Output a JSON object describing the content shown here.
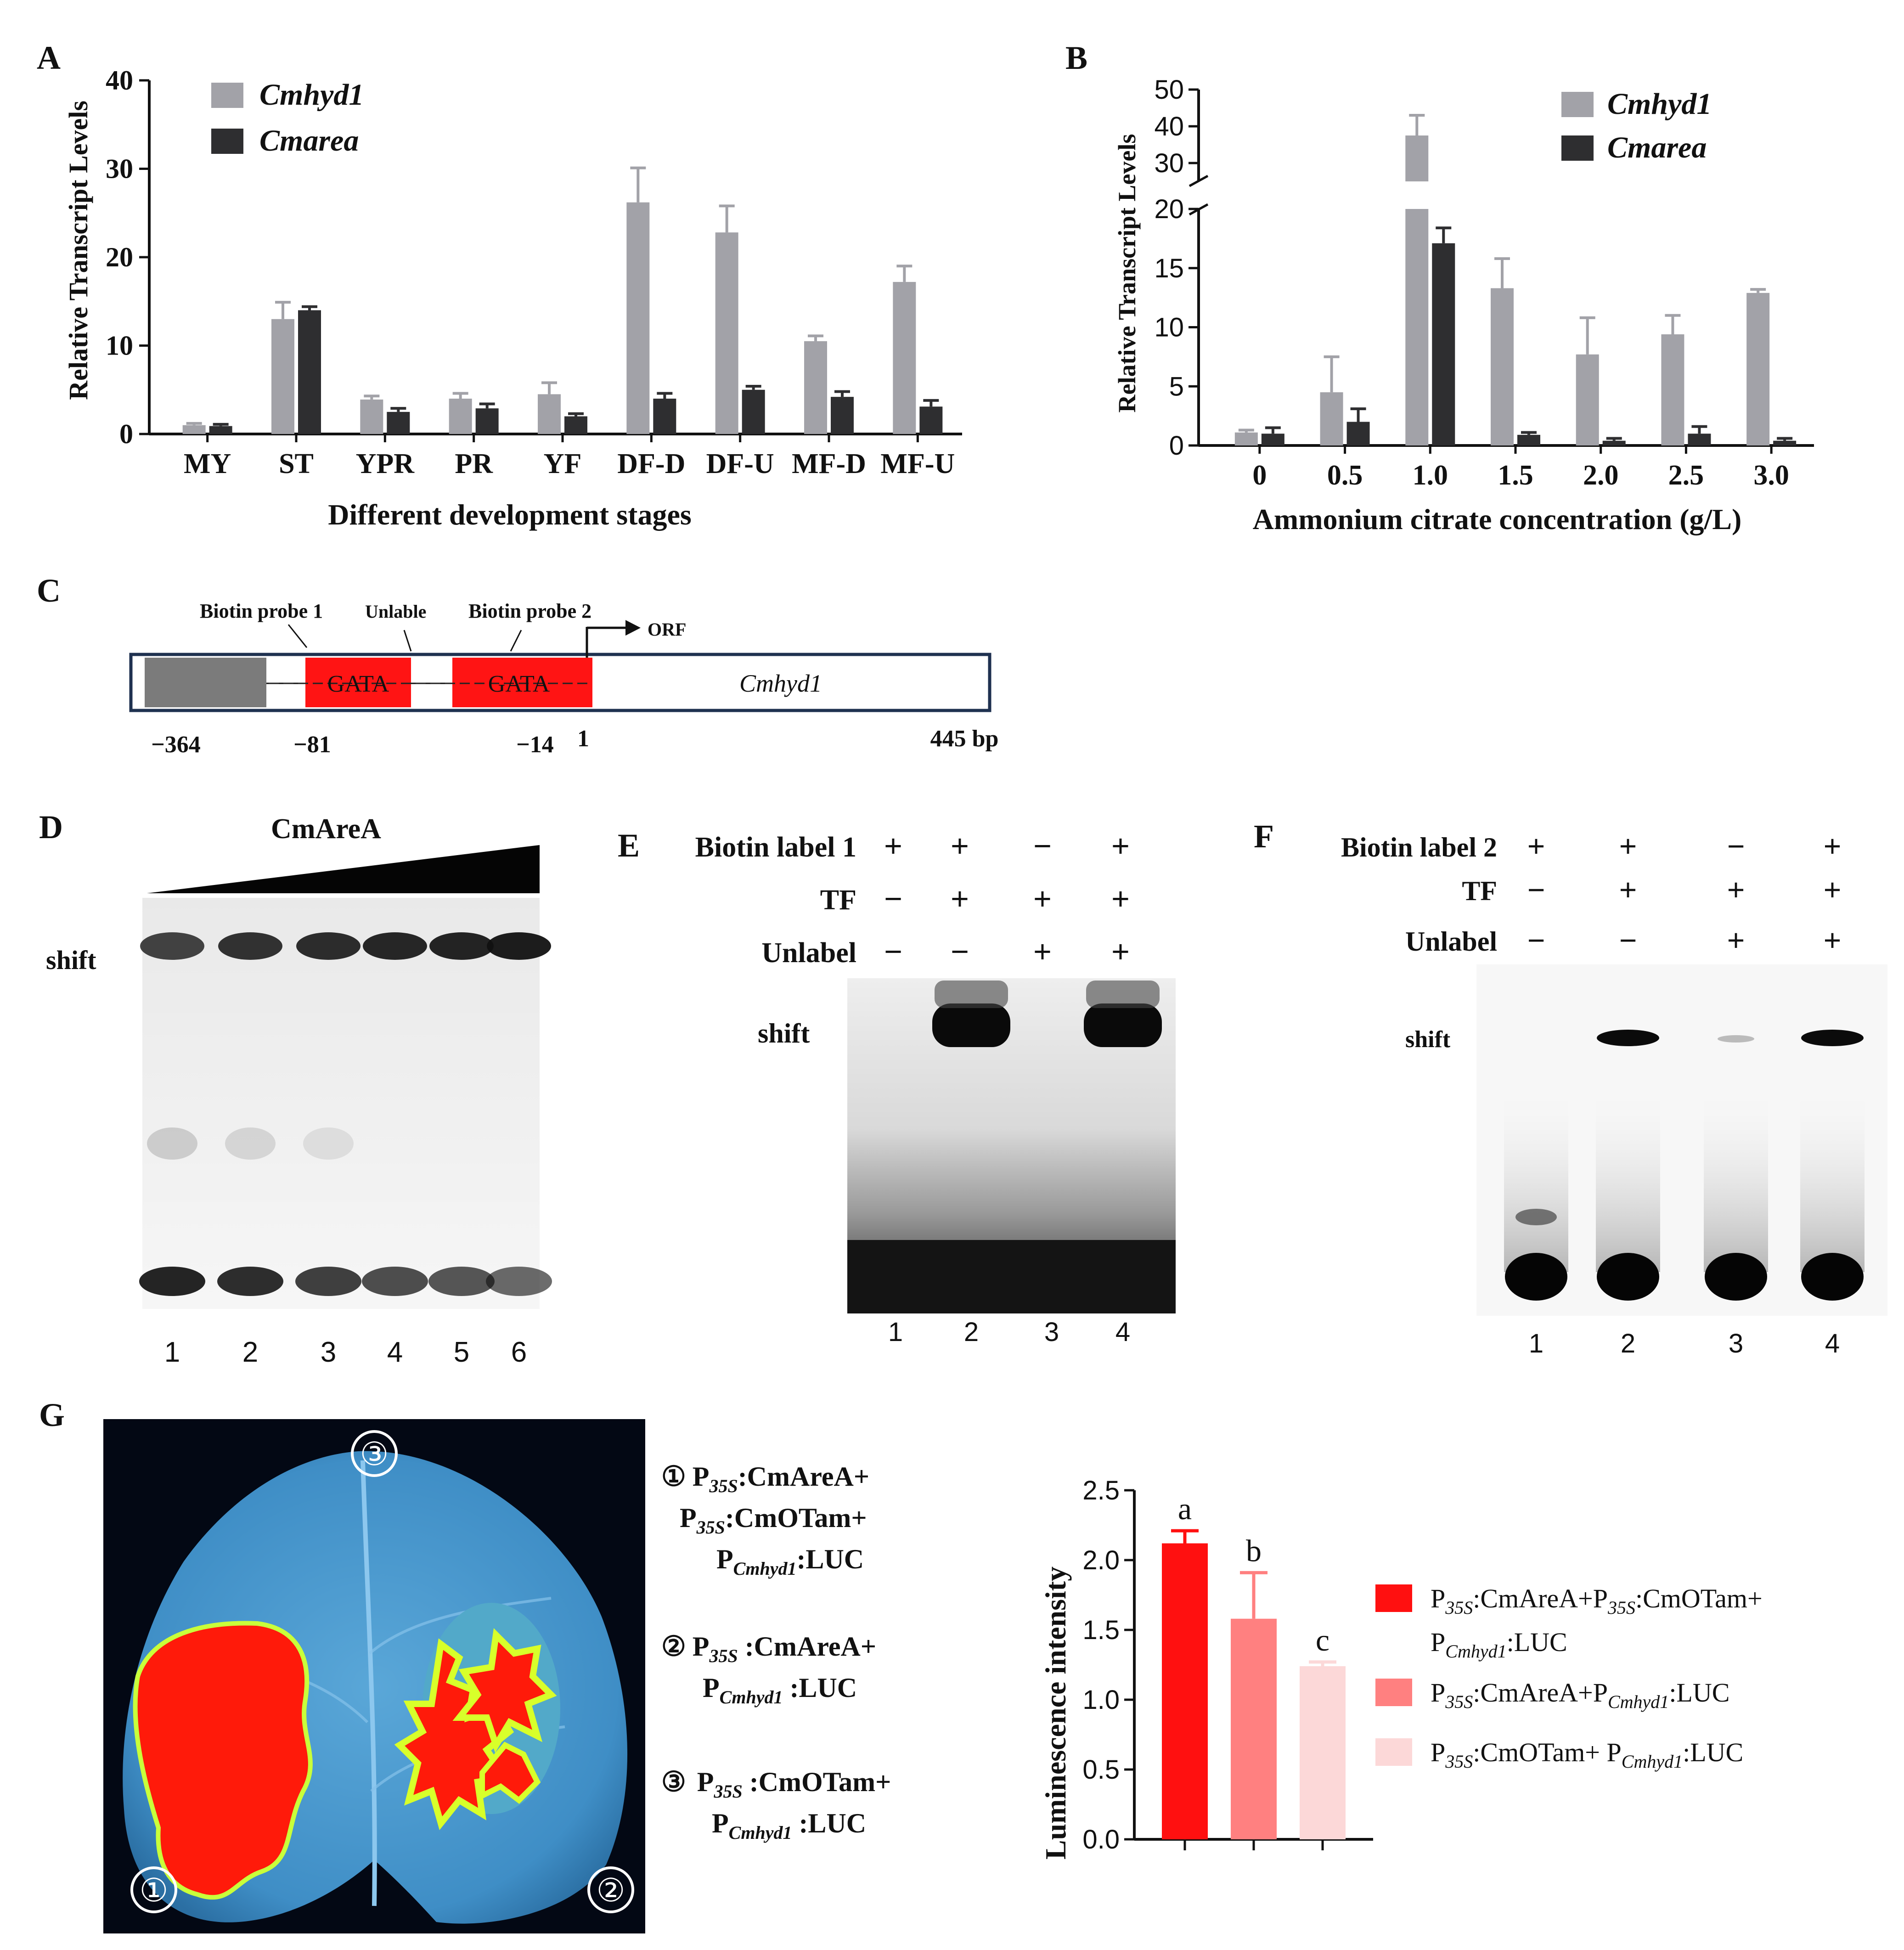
{
  "panels": {
    "A": {
      "letter": "A",
      "chart_data": {
        "type": "bar",
        "ylabel": "Relative Transcript Levels",
        "xlabel": "Different development stages",
        "ylim": [
          0,
          40
        ],
        "yticks": [
          0,
          10,
          20,
          30,
          40
        ],
        "categories": [
          "MY",
          "ST",
          "YPR",
          "PR",
          "YF",
          "DF-D",
          "DF-U",
          "MF-D",
          "MF-U"
        ],
        "series": [
          {
            "name": "Cmhyd1",
            "color": "#a2a2a8",
            "values": [
              1.0,
              13.0,
              3.9,
              4.0,
              4.5,
              26.2,
              22.8,
              10.5,
              17.2
            ],
            "errors": [
              0.2,
              1.9,
              0.4,
              0.6,
              1.3,
              3.9,
              3.0,
              0.6,
              1.8
            ]
          },
          {
            "name": "Cmarea",
            "color": "#2e2e30",
            "values": [
              0.9,
              14.0,
              2.5,
              2.9,
              2.0,
              4.0,
              5.0,
              4.2,
              3.1
            ],
            "errors": [
              0.2,
              0.4,
              0.4,
              0.5,
              0.3,
              0.6,
              0.4,
              0.6,
              0.7
            ]
          }
        ],
        "legend": "top-left",
        "grid": false
      }
    },
    "B": {
      "letter": "B",
      "chart_data": {
        "type": "bar",
        "ylabel": "Relative Transcript Levels",
        "xlabel": "Ammonium citrate concentration (g/L)",
        "ylim": [
          0,
          50
        ],
        "axis_break": [
          20,
          25
        ],
        "yticks_lower": [
          0,
          5,
          10,
          15,
          20
        ],
        "yticks_upper": [
          30,
          40,
          50
        ],
        "categories": [
          "0",
          "0.5",
          "1.0",
          "1.5",
          "2.0",
          "2.5",
          "3.0"
        ],
        "series": [
          {
            "name": "Cmhyd1",
            "color": "#a2a2a8",
            "values": [
              1.1,
              4.5,
              37.5,
              13.3,
              7.7,
              9.4,
              12.9
            ],
            "errors": [
              0.2,
              3.0,
              5.5,
              2.5,
              3.1,
              1.6,
              0.3
            ]
          },
          {
            "name": "Cmarea",
            "color": "#2e2e30",
            "values": [
              1.0,
              2.0,
              17.1,
              0.9,
              0.4,
              1.0,
              0.4
            ],
            "errors": [
              0.5,
              1.1,
              1.3,
              0.2,
              0.2,
              0.6,
              0.2
            ]
          }
        ],
        "legend": "top-right",
        "grid": false
      }
    },
    "C": {
      "letter": "C",
      "probe1": "Biotin probe 1",
      "unlable": "Unlable",
      "probe2": "Biotin probe 2",
      "orf": "ORF",
      "box1": "GATA",
      "box2": "GATA",
      "gene": "Cmhyd1",
      "pos": [
        "−364",
        "−81",
        "−14",
        "1",
        "445 bp"
      ]
    },
    "D": {
      "letter": "D",
      "protein": "CmAreA",
      "shift": "shift",
      "lanes": [
        "1",
        "2",
        "3",
        "4",
        "5",
        "6"
      ]
    },
    "E": {
      "letter": "E",
      "rows": [
        {
          "label": "Biotin label 1",
          "signs": [
            "+",
            "+",
            "−",
            "+"
          ]
        },
        {
          "label": "TF",
          "signs": [
            "−",
            "+",
            "+",
            "+"
          ]
        },
        {
          "label": "Unlabel",
          "signs": [
            "−",
            "−",
            "+",
            "+"
          ]
        }
      ],
      "shift": "shift",
      "lanes": [
        "1",
        "2",
        "3",
        "4"
      ]
    },
    "F": {
      "letter": "F",
      "rows": [
        {
          "label": "Biotin label 2",
          "signs": [
            "+",
            "+",
            "−",
            "+"
          ]
        },
        {
          "label": "TF",
          "signs": [
            "−",
            "+",
            "+",
            "+"
          ]
        },
        {
          "label": "Unlabel",
          "signs": [
            "−",
            "−",
            "+",
            "+"
          ]
        }
      ],
      "shift": "shift",
      "lanes": [
        "1",
        "2",
        "3",
        "4"
      ]
    },
    "G": {
      "letter": "G",
      "leaf_markers": [
        "①",
        "②",
        "③"
      ],
      "constructs": {
        "c1_num": "①",
        "c1_l1a": "P",
        "c1_l1s": "35S",
        "c1_l1b": ":CmAreA+",
        "c1_l2a": "P",
        "c1_l2s": "35S",
        "c1_l2b": ":CmOTam+",
        "c1_l3a": "P",
        "c1_l3s": "Cmhyd1",
        "c1_l3b": ":LUC",
        "c2_num": "②",
        "c2_l1a": "P",
        "c2_l1s": "35S",
        "c2_l1b": " :CmAreA+",
        "c2_l2a": "P",
        "c2_l2s": "Cmhyd1",
        "c2_l2b": " :LUC",
        "c3_num": "③",
        "c3_l1a": "P",
        "c3_l1s": "35S",
        "c3_l1b": " :CmOTam+",
        "c3_l2a": "P",
        "c3_l2s": "Cmhyd1",
        "c3_l2b": " :LUC"
      },
      "chart_data": {
        "type": "bar",
        "ylabel": "Luminescence intensity",
        "ylim": [
          0,
          2.5
        ],
        "yticks": [
          "0.0",
          "0.5",
          "1.0",
          "1.5",
          "2.0",
          "2.5"
        ],
        "values": [
          2.12,
          1.58,
          1.24
        ],
        "errors": [
          0.09,
          0.33,
          0.03
        ],
        "letters": [
          "a",
          "b",
          "c"
        ],
        "colors": [
          "#ff1010",
          "#ff8080",
          "#fcd8d8"
        ],
        "legend": [
          {
            "l1a": "P",
            "l1s": "35S",
            "l1b": ":CmAreA+P",
            "l1s2": "35S",
            "l1c": ":CmOTam+",
            "l2a": "P",
            "l2s": "Cmhyd1",
            "l2b": ":LUC"
          },
          {
            "l1a": "P",
            "l1s": "35S",
            "l1b": ":CmAreA+P",
            "l1s2": "Cmhyd1",
            "l1c": ":LUC"
          },
          {
            "l1a": "P",
            "l1s": "35S",
            "l1b": ":CmOTam+ P",
            "l1s2": "Cmhyd1",
            "l1c": ":LUC"
          }
        ],
        "legend_position": "right"
      }
    }
  }
}
